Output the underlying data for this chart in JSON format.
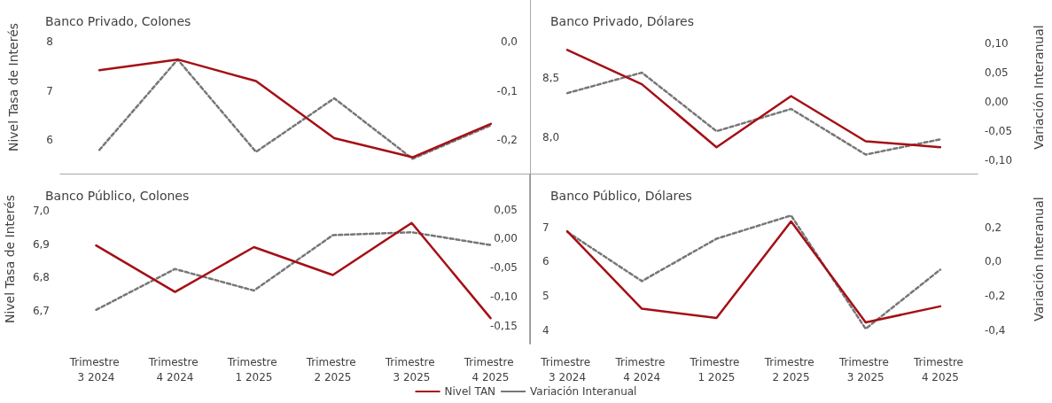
{
  "chart_data": [
    {
      "type": "line",
      "title": "Banco Privado, Colones",
      "ylabel": "Nivel Tasa de Interés",
      "categories": [
        "Trimestre 3 2024",
        "Trimestre 4 2024",
        "Trimestre 1 2025",
        "Trimestre 2 2025",
        "Trimestre 3 2025",
        "Trimestre 4 2025"
      ],
      "tick_labels": "y",
      "marker": "none",
      "ylim": [
        5.3,
        8.85
      ],
      "yticks": [
        6,
        7,
        8
      ],
      "y2lim": [
        -0.27,
        0.085
      ],
      "y2ticks": [
        {
          "value": -0.2,
          "label": "-0,2"
        },
        {
          "value": -0.1,
          "label": "-0,1"
        },
        {
          "value": 0,
          "label": "0,0"
        }
      ],
      "series": [
        {
          "color": "#a50f15",
          "line_style": "solid",
          "values": [
            7.42,
            7.64,
            7.2,
            6.04,
            5.65,
            6.33
          ]
        },
        {
          "color": "#767676",
          "line_style": "dashed",
          "axis": "y2",
          "values": [
            -0.22,
            -0.036,
            -0.224,
            -0.115,
            -0.238,
            -0.17
          ]
        }
      ]
    },
    {
      "type": "line",
      "title": "Banco Privado, Dólares",
      "y2label": "Variación Interanual",
      "categories": [
        "Trimestre 3 2024",
        "Trimestre 4 2024",
        "Trimestre 1 2025",
        "Trimestre 2 2025",
        "Trimestre 3 2025",
        "Trimestre 4 2025"
      ],
      "tick_labels": "y",
      "marker": "none",
      "ylim": [
        7.69,
        9.16
      ],
      "yticks": [
        {
          "value": 8,
          "label": "8,0"
        },
        {
          "value": 8.5,
          "label": "8,5"
        }
      ],
      "y2lim": [
        -0.124,
        0.174
      ],
      "y2ticks": [
        {
          "value": -0.1,
          "label": "-0,10"
        },
        {
          "value": -0.05,
          "label": "-0,05"
        },
        {
          "value": 0,
          "label": "0,00"
        },
        {
          "value": 0.05,
          "label": "0,05"
        },
        {
          "value": 0.1,
          "label": "0,10"
        }
      ],
      "series": [
        {
          "color": "#a50f15",
          "line_style": "solid",
          "values": [
            8.74,
            8.45,
            7.92,
            8.35,
            7.97,
            7.92
          ]
        },
        {
          "color": "#767676",
          "line_style": "dashed",
          "axis": "y2",
          "values": [
            0.015,
            0.05,
            -0.05,
            -0.012,
            -0.09,
            -0.064
          ]
        }
      ]
    },
    {
      "type": "line",
      "title": "Banco Público, Colones",
      "ylabel": "Nivel Tasa de Interés",
      "categories": [
        "Trimestre 3 2024",
        "Trimestre 4 2024",
        "Trimestre 1 2025",
        "Trimestre 2 2025",
        "Trimestre 3 2025",
        "Trimestre 4 2025"
      ],
      "marker": "none",
      "legend": "bottom",
      "ylim": [
        6.6,
        7.11
      ],
      "yticks": [
        {
          "value": 6.7,
          "label": "6,7"
        },
        {
          "value": 6.8,
          "label": "6,8"
        },
        {
          "value": 6.9,
          "label": "6,9"
        },
        {
          "value": 7,
          "label": "7,0"
        }
      ],
      "y2lim": [
        -0.18,
        0.11
      ],
      "y2ticks": [
        {
          "value": -0.15,
          "label": "-0,15"
        },
        {
          "value": -0.1,
          "label": "-0,10"
        },
        {
          "value": -0.05,
          "label": "-0,05"
        },
        {
          "value": 0,
          "label": "0,00"
        },
        {
          "value": 0.05,
          "label": "0,05"
        }
      ],
      "series": [
        {
          "name": "Nivel TAN",
          "color": "#a50f15",
          "line_style": "solid",
          "values": [
            6.896,
            6.756,
            6.891,
            6.807,
            6.964,
            6.677
          ]
        },
        {
          "name": "Variación Interanual",
          "color": "#767676",
          "line_style": "dashed",
          "axis": "y2",
          "values": [
            -0.122,
            -0.052,
            -0.089,
            0.006,
            0.011,
            -0.011
          ]
        }
      ]
    },
    {
      "type": "line",
      "title": "Banco Público, Dólares",
      "y2label": "Variación Interanual",
      "categories": [
        "Trimestre 3 2024",
        "Trimestre 4 2024",
        "Trimestre 1 2025",
        "Trimestre 2 2025",
        "Trimestre 3 2025",
        "Trimestre 4 2025"
      ],
      "marker": "none",
      "ylim": [
        3.6,
        8.54
      ],
      "yticks": [
        4,
        5,
        6,
        7
      ],
      "y2lim": [
        -0.48,
        0.51
      ],
      "y2ticks": [
        {
          "value": -0.4,
          "label": "-0,4"
        },
        {
          "value": -0.2,
          "label": "-0,2"
        },
        {
          "value": 0,
          "label": "0,0"
        },
        {
          "value": 0.2,
          "label": "0,2"
        }
      ],
      "series": [
        {
          "color": "#a50f15",
          "line_style": "solid",
          "values": [
            6.88,
            4.62,
            4.35,
            7.17,
            4.22,
            4.69
          ]
        },
        {
          "color": "#767676",
          "line_style": "dashed",
          "axis": "y2",
          "values": [
            0.174,
            -0.114,
            0.134,
            0.27,
            -0.393,
            -0.047
          ]
        }
      ]
    }
  ]
}
